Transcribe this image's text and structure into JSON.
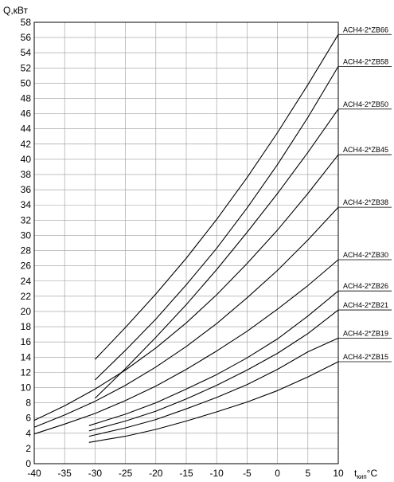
{
  "chart_data": {
    "type": "line",
    "ylabel": "Q,кВт",
    "xlabel_main": "t",
    "xlabel_sub": "кип",
    "xlabel_unit": "°C",
    "xlim": [
      -40,
      10
    ],
    "ylim": [
      0,
      58
    ],
    "x_ticks": [
      -40,
      -35,
      -30,
      -25,
      -20,
      -15,
      -10,
      -5,
      0,
      5,
      10
    ],
    "y_ticks": [
      0,
      2,
      4,
      6,
      8,
      10,
      12,
      14,
      16,
      18,
      20,
      22,
      24,
      26,
      28,
      30,
      32,
      34,
      36,
      38,
      40,
      42,
      44,
      46,
      48,
      50,
      52,
      54,
      56,
      58
    ],
    "grid": true,
    "series": [
      {
        "name": "ACH4-2*ZB66",
        "x": [
          -30,
          -25,
          -20,
          -15,
          -10,
          -5,
          0,
          5,
          10
        ],
        "y": [
          13.7,
          17.9,
          22.3,
          27.0,
          32.1,
          37.6,
          43.5,
          49.8,
          56.4
        ]
      },
      {
        "name": "ACH4-2*ZB58",
        "x": [
          -30,
          -25,
          -20,
          -15,
          -10,
          -5,
          0,
          5,
          10
        ],
        "y": [
          11.0,
          14.9,
          19.0,
          23.5,
          28.3,
          33.6,
          39.3,
          45.5,
          52.2
        ]
      },
      {
        "name": "ACH4-2*ZB50",
        "x": [
          -30,
          -25,
          -20,
          -15,
          -10,
          -5,
          0,
          5,
          10
        ],
        "y": [
          8.6,
          12.5,
          16.6,
          20.9,
          25.5,
          30.4,
          35.5,
          40.9,
          46.6
        ]
      },
      {
        "name": "ACH4-2*ZB45",
        "x": [
          -40,
          -35,
          -30,
          -25,
          -20,
          -15,
          -10,
          -5,
          0,
          5,
          10
        ],
        "y": [
          5.7,
          7.6,
          9.8,
          12.3,
          15.2,
          18.5,
          22.2,
          26.3,
          30.7,
          35.5,
          40.6
        ]
      },
      {
        "name": "ACH4-2*ZB38",
        "x": [
          -40,
          -35,
          -30,
          -25,
          -20,
          -15,
          -10,
          -5,
          0,
          5,
          10
        ],
        "y": [
          4.8,
          6.4,
          8.2,
          10.3,
          12.7,
          15.4,
          18.4,
          21.8,
          25.4,
          29.4,
          33.7
        ]
      },
      {
        "name": "ACH4-2*ZB30",
        "x": [
          -40,
          -35,
          -30,
          -25,
          -20,
          -15,
          -10,
          -5,
          0,
          5,
          10
        ],
        "y": [
          3.9,
          5.2,
          6.6,
          8.3,
          10.2,
          12.4,
          14.8,
          17.4,
          20.3,
          23.4,
          26.8
        ]
      },
      {
        "name": "ACH4-2*ZB26",
        "x": [
          -31,
          -25,
          -20,
          -15,
          -10,
          -5,
          0,
          5,
          10
        ],
        "y": [
          5.0,
          6.5,
          8.0,
          9.8,
          11.7,
          13.9,
          16.4,
          19.4,
          22.7
        ]
      },
      {
        "name": "ACH4-2*ZB21",
        "x": [
          -31,
          -25,
          -20,
          -15,
          -10,
          -5,
          0,
          5,
          10
        ],
        "y": [
          4.3,
          5.6,
          6.9,
          8.5,
          10.3,
          12.3,
          14.5,
          17.1,
          20.2
        ]
      },
      {
        "name": "ACH4-2*ZB19",
        "x": [
          -31,
          -25,
          -20,
          -15,
          -10,
          -5,
          0,
          5,
          10
        ],
        "y": [
          3.6,
          4.7,
          5.8,
          7.2,
          8.7,
          10.4,
          12.4,
          14.7,
          16.5
        ]
      },
      {
        "name": "ACH4-2*ZB15",
        "x": [
          -31,
          -25,
          -20,
          -15,
          -10,
          -5,
          0,
          5,
          10
        ],
        "y": [
          2.8,
          3.6,
          4.5,
          5.6,
          6.8,
          8.1,
          9.6,
          11.4,
          13.4
        ]
      }
    ]
  }
}
